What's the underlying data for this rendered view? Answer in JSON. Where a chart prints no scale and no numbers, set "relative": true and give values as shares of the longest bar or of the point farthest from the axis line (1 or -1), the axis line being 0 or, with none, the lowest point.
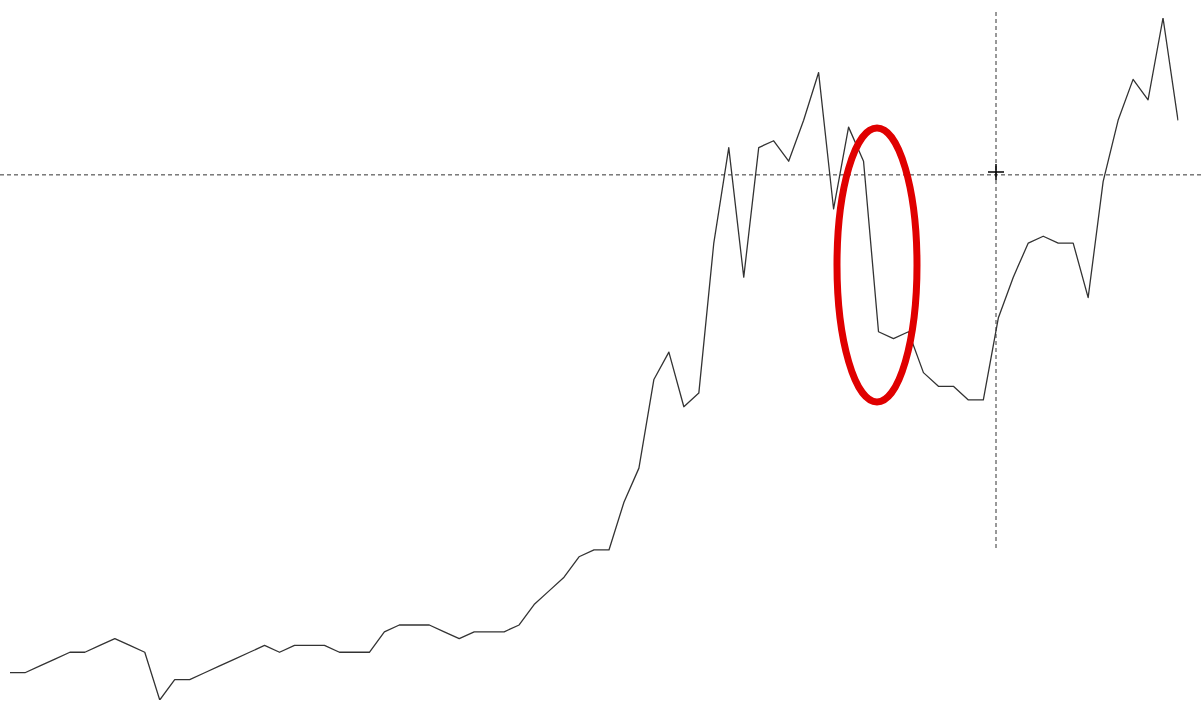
{
  "chart_data": {
    "type": "line",
    "relative": true,
    "marker": "none",
    "legend": false,
    "categories": [
      null,
      null,
      null,
      null,
      null,
      null,
      null,
      null,
      null,
      null,
      null,
      null,
      null,
      null,
      null,
      null,
      null,
      null,
      null,
      null,
      null,
      null,
      null,
      null,
      null,
      null,
      null,
      null,
      null,
      null,
      null,
      null,
      null,
      null,
      null,
      null,
      null,
      null,
      null,
      null,
      null,
      null,
      null,
      null,
      null,
      null,
      null,
      null,
      null,
      null,
      null,
      null,
      null,
      null,
      null,
      null,
      null,
      null,
      null,
      null,
      null,
      null,
      null,
      null,
      null,
      null,
      null,
      null,
      null,
      null,
      null,
      null,
      null,
      null,
      null,
      null,
      null,
      null,
      null
    ],
    "series": [
      {
        "color": "#333333",
        "values": [
          0.04,
          0.04,
          0.05,
          0.06,
          0.07,
          0.07,
          0.08,
          0.09,
          0.08,
          0.07,
          0,
          0.03,
          0.03,
          0.04,
          0.05,
          0.06,
          0.07,
          0.08,
          0.07,
          0.08,
          0.08,
          0.08,
          0.07,
          0.07,
          0.07,
          0.1,
          0.11,
          0.11,
          0.11,
          0.1,
          0.09,
          0.1,
          0.1,
          0.1,
          0.11,
          0.14,
          0.16,
          0.18,
          0.21,
          0.22,
          0.22,
          0.29,
          0.34,
          0.47,
          0.51,
          0.43,
          0.45,
          0.67,
          0.81,
          0.62,
          0.81,
          0.82,
          0.79,
          0.85,
          0.92,
          0.72,
          0.84,
          0.79,
          0.54,
          0.53,
          0.54,
          0.48,
          0.46,
          0.46,
          0.44,
          0.44,
          0.56,
          0.62,
          0.67,
          0.68,
          0.67,
          0.67,
          0.59,
          0.76,
          0.85,
          0.91,
          0.88,
          1,
          0.85
        ]
      }
    ],
    "ref_lines": [
      {
        "axis": "y",
        "value": 0.77,
        "color": "#333333",
        "line_style": "dashed"
      }
    ]
  }
}
